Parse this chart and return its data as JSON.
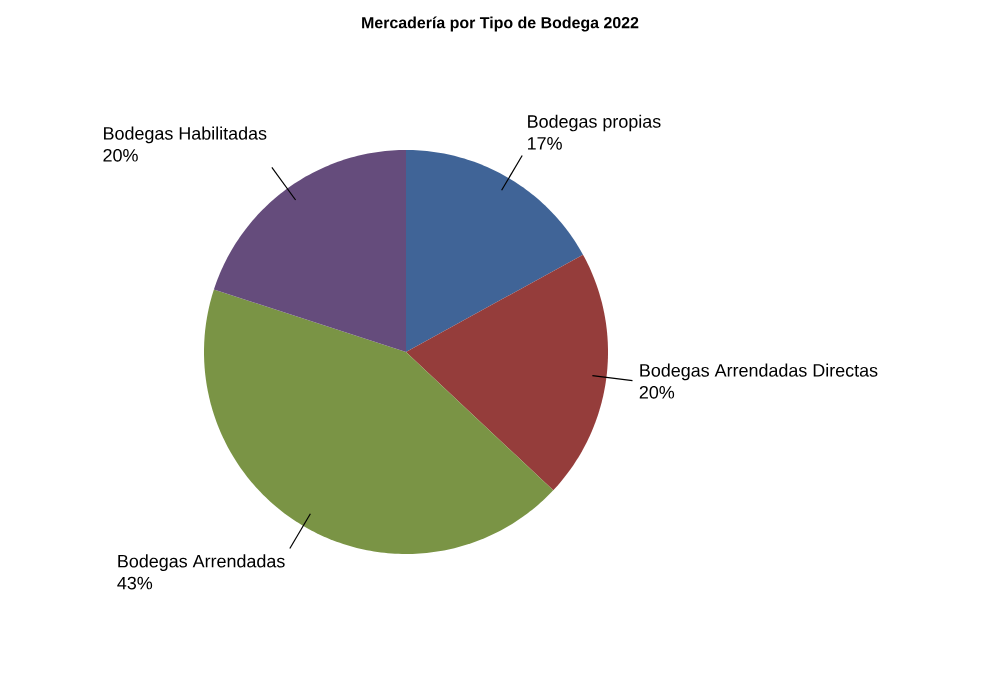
{
  "chart_data": {
    "type": "pie",
    "title": "Mercadería por Tipo de Bodega 2022",
    "categories": [
      "Bodegas propias",
      "Bodegas Arrendadas Directas",
      "Bodegas Arrendadas",
      "Bodegas Habilitadas"
    ],
    "values": [
      17,
      20,
      43,
      20
    ],
    "value_labels": [
      "17%",
      "20%",
      "43%",
      "20%"
    ],
    "colors": [
      "#406497",
      "#953d3b",
      "#7a9445",
      "#654c7c"
    ]
  }
}
